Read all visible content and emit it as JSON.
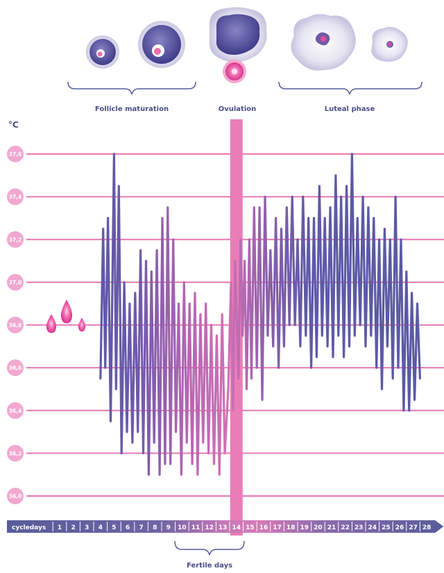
{
  "header": {
    "phase_follicle": "Follicle maturation",
    "phase_ovulation": "Ovulation",
    "phase_luteal": "Luteal phase",
    "unit_label": "°C"
  },
  "footer": {
    "cycledays_label": "cycledays",
    "fertile_label": "Fertile days"
  },
  "colors": {
    "grid": "#e777b3",
    "ovulation_bar": "#ea7db7",
    "line_pink": "#c96bb6",
    "line_purple": "#5e5aa6",
    "axis_dark": "#575c99",
    "axis_pink": "#d47ab8"
  },
  "chart_data": {
    "type": "line",
    "title": "",
    "xlabel": "cycledays",
    "ylabel": "°C",
    "ylim": [
      36.0,
      37.6
    ],
    "yticks": [
      "36,0",
      "36,2",
      "36,4",
      "36,6",
      "36,8",
      "37,0",
      "37,2",
      "37,4",
      "37,6"
    ],
    "categories": [
      "1",
      "2",
      "3",
      "4",
      "5",
      "6",
      "7",
      "8",
      "9",
      "10",
      "11",
      "12",
      "13",
      "14",
      "15",
      "16",
      "17",
      "18",
      "19",
      "20",
      "21",
      "22",
      "23",
      "24",
      "25",
      "26",
      "27",
      "28"
    ],
    "ovulation_day": 14,
    "fertile_days": [
      9,
      15
    ],
    "series": [
      {
        "values": [
          [
            4.0,
            36.55
          ],
          [
            4.2,
            37.25
          ],
          [
            4.35,
            36.6
          ],
          [
            4.55,
            37.3
          ],
          [
            4.75,
            36.35
          ],
          [
            5.0,
            37.6
          ],
          [
            5.15,
            36.5
          ],
          [
            5.35,
            37.45
          ],
          [
            5.55,
            36.2
          ],
          [
            5.75,
            37.0
          ],
          [
            5.95,
            36.3
          ],
          [
            6.15,
            36.9
          ],
          [
            6.35,
            36.25
          ],
          [
            6.55,
            36.95
          ],
          [
            6.75,
            36.3
          ],
          [
            6.95,
            37.15
          ],
          [
            7.15,
            36.2
          ],
          [
            7.35,
            37.1
          ],
          [
            7.55,
            36.1
          ],
          [
            7.75,
            37.05
          ],
          [
            7.95,
            36.25
          ],
          [
            8.15,
            37.15
          ],
          [
            8.35,
            36.1
          ],
          [
            8.55,
            37.3
          ],
          [
            8.75,
            36.15
          ],
          [
            8.95,
            37.35
          ],
          [
            9.15,
            36.15
          ],
          [
            9.35,
            37.2
          ],
          [
            9.55,
            36.3
          ],
          [
            9.75,
            36.9
          ],
          [
            9.95,
            36.1
          ],
          [
            10.15,
            37.0
          ],
          [
            10.35,
            36.25
          ],
          [
            10.55,
            36.9
          ],
          [
            10.75,
            36.15
          ],
          [
            10.95,
            36.95
          ],
          [
            11.15,
            36.1
          ],
          [
            11.35,
            36.85
          ],
          [
            11.55,
            36.25
          ],
          [
            11.75,
            36.9
          ],
          [
            11.95,
            36.2
          ],
          [
            12.15,
            36.8
          ],
          [
            12.35,
            36.15
          ],
          [
            12.55,
            36.75
          ],
          [
            12.75,
            36.1
          ],
          [
            12.95,
            36.85
          ],
          [
            13.15,
            36.2
          ],
          [
            13.4,
            36.5
          ],
          [
            13.6,
            37.0
          ],
          [
            13.75,
            36.4
          ],
          [
            13.9,
            37.1
          ],
          [
            14.15,
            36.55
          ],
          [
            14.3,
            37.2
          ],
          [
            14.45,
            36.75
          ],
          [
            14.6,
            37.1
          ],
          [
            14.75,
            36.5
          ],
          [
            14.95,
            37.2
          ],
          [
            15.1,
            36.55
          ],
          [
            15.3,
            37.35
          ],
          [
            15.5,
            36.6
          ],
          [
            15.7,
            37.35
          ],
          [
            15.9,
            36.45
          ],
          [
            16.1,
            37.4
          ],
          [
            16.3,
            36.75
          ],
          [
            16.5,
            37.15
          ],
          [
            16.7,
            36.7
          ],
          [
            16.9,
            37.3
          ],
          [
            17.1,
            36.6
          ],
          [
            17.3,
            37.25
          ],
          [
            17.5,
            36.7
          ],
          [
            17.7,
            37.35
          ],
          [
            17.9,
            36.8
          ],
          [
            18.1,
            37.4
          ],
          [
            18.3,
            36.8
          ],
          [
            18.5,
            37.2
          ],
          [
            18.7,
            36.7
          ],
          [
            18.9,
            37.4
          ],
          [
            19.1,
            36.75
          ],
          [
            19.3,
            37.3
          ],
          [
            19.5,
            36.6
          ],
          [
            19.7,
            37.3
          ],
          [
            19.9,
            36.65
          ],
          [
            20.1,
            37.45
          ],
          [
            20.3,
            36.75
          ],
          [
            20.5,
            37.3
          ],
          [
            20.7,
            36.7
          ],
          [
            20.9,
            37.35
          ],
          [
            21.1,
            36.65
          ],
          [
            21.3,
            37.5
          ],
          [
            21.5,
            36.75
          ],
          [
            21.7,
            37.4
          ],
          [
            21.9,
            36.65
          ],
          [
            22.1,
            37.45
          ],
          [
            22.3,
            36.7
          ],
          [
            22.5,
            37.6
          ],
          [
            22.7,
            36.75
          ],
          [
            22.9,
            37.3
          ],
          [
            23.1,
            36.8
          ],
          [
            23.3,
            37.4
          ],
          [
            23.5,
            36.7
          ],
          [
            23.7,
            37.35
          ],
          [
            23.9,
            36.75
          ],
          [
            24.1,
            37.3
          ],
          [
            24.3,
            36.6
          ],
          [
            24.5,
            37.2
          ],
          [
            24.7,
            36.5
          ],
          [
            24.9,
            37.25
          ],
          [
            25.1,
            36.7
          ],
          [
            25.3,
            37.2
          ],
          [
            25.5,
            36.55
          ],
          [
            25.7,
            37.4
          ],
          [
            25.9,
            36.6
          ],
          [
            26.1,
            37.2
          ],
          [
            26.3,
            36.4
          ],
          [
            26.5,
            37.05
          ],
          [
            26.7,
            36.4
          ],
          [
            26.9,
            36.95
          ],
          [
            27.1,
            36.45
          ],
          [
            27.3,
            36.9
          ],
          [
            27.5,
            36.55
          ]
        ]
      }
    ]
  }
}
